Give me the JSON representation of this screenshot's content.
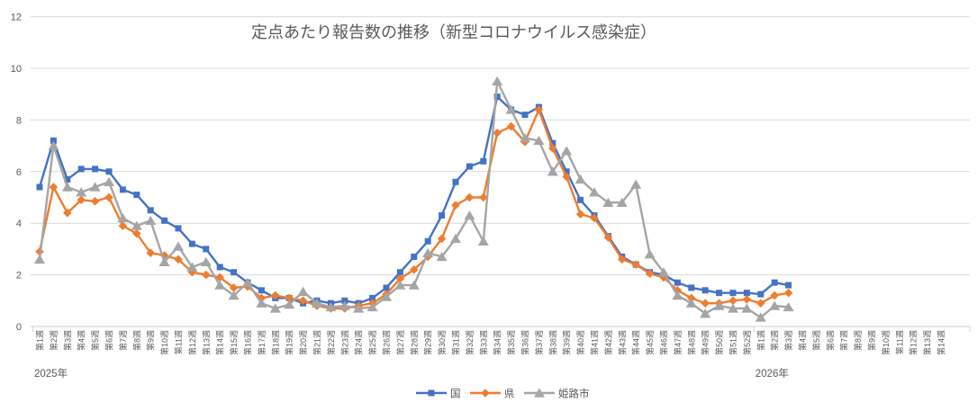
{
  "title": "定点あたり報告数の推移（新型コロナウイルス感染症）",
  "chart_data": {
    "type": "line",
    "title": "定点あたり報告数の推移（新型コロナウイルス感染症）",
    "grid": true,
    "legend_position": "bottom",
    "ylim": [
      0,
      12
    ],
    "y_ticks": [
      0,
      2,
      4,
      6,
      8,
      10,
      12
    ],
    "x_axis": {
      "year_groups": [
        {
          "label": "2025年",
          "start_index": 0,
          "weeks": 52
        },
        {
          "label": "2026年",
          "start_index": 52,
          "weeks": 14
        }
      ],
      "tick_labels": [
        "第1週",
        "第2週",
        "第3週",
        "第4週",
        "第5週",
        "第6週",
        "第7週",
        "第8週",
        "第9週",
        "第10週",
        "第11週",
        "第12週",
        "第13週",
        "第14週",
        "第15週",
        "第16週",
        "第17週",
        "第18週",
        "第19週",
        "第20週",
        "第21週",
        "第22週",
        "第23週",
        "第24週",
        "第25週",
        "第26週",
        "第27週",
        "第28週",
        "第29週",
        "第30週",
        "第31週",
        "第32週",
        "第33週",
        "第34週",
        "第35週",
        "第36週",
        "第37週",
        "第38週",
        "第39週",
        "第40週",
        "第41週",
        "第42週",
        "第43週",
        "第44週",
        "第45週",
        "第46週",
        "第47週",
        "第48週",
        "第49週",
        "第50週",
        "第51週",
        "第52週",
        "第1週",
        "第2週",
        "第3週",
        "第4週",
        "第5週",
        "第6週",
        "第7週",
        "第8週",
        "第9週",
        "第10週",
        "第11週",
        "第12週",
        "第13週",
        "第14週"
      ]
    },
    "series": [
      {
        "name": "国",
        "color": "#4472C4",
        "marker": "square",
        "values": [
          5.4,
          7.2,
          5.7,
          6.1,
          6.1,
          6.0,
          5.3,
          5.1,
          4.5,
          4.1,
          3.8,
          3.2,
          3.0,
          2.3,
          2.1,
          1.7,
          1.4,
          1.1,
          1.1,
          0.9,
          1.0,
          0.9,
          1.0,
          0.9,
          1.1,
          1.5,
          2.1,
          2.7,
          3.3,
          4.3,
          5.6,
          6.2,
          6.4,
          8.9,
          8.4,
          8.2,
          8.5,
          7.1,
          6.0,
          4.9,
          4.3,
          3.5,
          2.7,
          2.4,
          2.1,
          2.0,
          1.7,
          1.5,
          1.4,
          1.3,
          1.3,
          1.3,
          1.25,
          1.7,
          1.6,
          null,
          null,
          null,
          null,
          null,
          null,
          null,
          null,
          null,
          null,
          null
        ]
      },
      {
        "name": "県",
        "color": "#ED7D31",
        "marker": "diamond",
        "values": [
          2.9,
          5.4,
          4.4,
          4.9,
          4.85,
          5.0,
          3.9,
          3.6,
          2.85,
          2.75,
          2.6,
          2.1,
          2.0,
          1.9,
          1.5,
          1.55,
          1.1,
          1.2,
          1.1,
          1.0,
          0.8,
          0.7,
          0.7,
          0.8,
          0.9,
          1.25,
          1.85,
          2.2,
          2.7,
          3.4,
          4.7,
          5.0,
          5.0,
          7.5,
          7.75,
          7.15,
          8.4,
          6.9,
          5.8,
          4.35,
          4.2,
          3.45,
          2.6,
          2.4,
          2.05,
          1.9,
          1.4,
          1.1,
          0.9,
          0.9,
          1.0,
          1.05,
          0.9,
          1.2,
          1.3,
          null,
          null,
          null,
          null,
          null,
          null,
          null,
          null,
          null,
          null,
          null
        ]
      },
      {
        "name": "姫路市",
        "color": "#A5A5A5",
        "marker": "triangle",
        "values": [
          2.6,
          7.0,
          5.4,
          5.2,
          5.4,
          5.6,
          4.2,
          3.9,
          4.1,
          2.5,
          3.1,
          2.3,
          2.5,
          1.6,
          1.2,
          1.7,
          0.9,
          0.7,
          0.85,
          1.35,
          0.9,
          0.75,
          0.8,
          0.7,
          0.75,
          1.15,
          1.6,
          1.6,
          2.85,
          2.7,
          3.4,
          4.3,
          3.3,
          9.5,
          8.4,
          7.3,
          7.2,
          6.0,
          6.8,
          5.7,
          5.2,
          4.8,
          4.8,
          5.5,
          2.8,
          2.1,
          1.2,
          0.9,
          0.5,
          0.8,
          0.7,
          0.7,
          0.35,
          0.8,
          0.75,
          null,
          null,
          null,
          null,
          null,
          null,
          null,
          null,
          null,
          null,
          null
        ]
      }
    ],
    "colors": {
      "gridline": "#D9D9D9",
      "axis_line": "#D0D0D0",
      "text": "#595959",
      "background": "#FFFFFF"
    }
  }
}
